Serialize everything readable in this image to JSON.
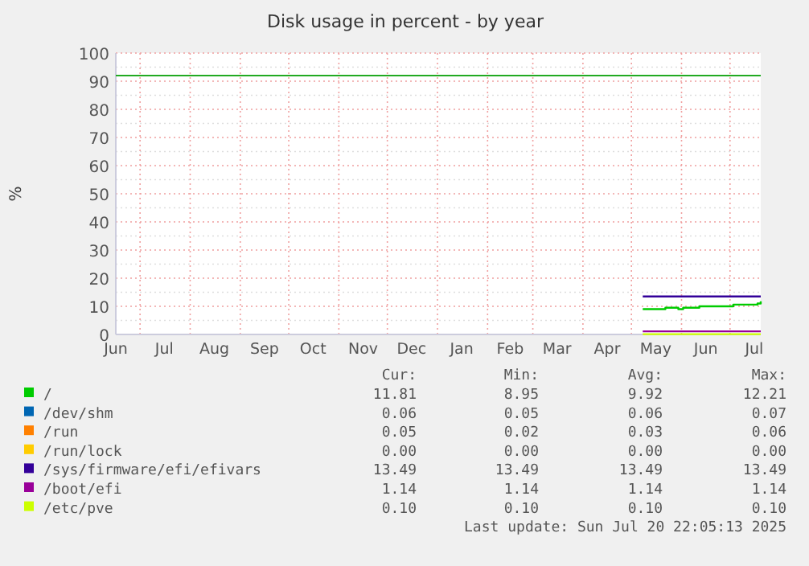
{
  "chart_data": {
    "type": "step",
    "title": "Disk usage in percent - by year",
    "ylabel": "%",
    "xlim": [
      "2024-06-16",
      "2025-07-20"
    ],
    "xticks": [
      {
        "value": "2024-06-16",
        "label": "Jun"
      },
      {
        "value": "2024-07-01",
        "label": null
      },
      {
        "value": "2024-07-16",
        "label": "Jul"
      },
      {
        "value": "2024-08-01",
        "label": null
      },
      {
        "value": "2024-08-16",
        "label": "Aug"
      },
      {
        "value": "2024-09-01",
        "label": null
      },
      {
        "value": "2024-09-16",
        "label": "Sep"
      },
      {
        "value": "2024-10-01",
        "label": null
      },
      {
        "value": "2024-10-16",
        "label": "Oct"
      },
      {
        "value": "2024-11-01",
        "label": null
      },
      {
        "value": "2024-11-16",
        "label": "Nov"
      },
      {
        "value": "2024-12-01",
        "label": null
      },
      {
        "value": "2024-12-16",
        "label": "Dec"
      },
      {
        "value": "2025-01-01",
        "label": null
      },
      {
        "value": "2025-01-16",
        "label": "Jan"
      },
      {
        "value": "2025-02-01",
        "label": null
      },
      {
        "value": "2025-02-15",
        "label": "Feb"
      },
      {
        "value": "2025-03-01",
        "label": null
      },
      {
        "value": "2025-03-16",
        "label": "Mar"
      },
      {
        "value": "2025-04-01",
        "label": null
      },
      {
        "value": "2025-04-16",
        "label": "Apr"
      },
      {
        "value": "2025-05-01",
        "label": null
      },
      {
        "value": "2025-05-16",
        "label": "May"
      },
      {
        "value": "2025-06-01",
        "label": null
      },
      {
        "value": "2025-06-16",
        "label": "Jun"
      },
      {
        "value": "2025-07-01",
        "label": null
      },
      {
        "value": "2025-07-16",
        "label": "Jul"
      }
    ],
    "ylim": [
      0,
      100
    ],
    "yticks": [
      0,
      {
        "value": 5,
        "label": null
      },
      10,
      {
        "value": 15,
        "label": null
      },
      20,
      {
        "value": 25,
        "label": null
      },
      30,
      {
        "value": 35,
        "label": null
      },
      40,
      {
        "value": 45,
        "label": null
      },
      50,
      {
        "value": 55,
        "label": null
      },
      60,
      {
        "value": 65,
        "label": null
      },
      70,
      {
        "value": 75,
        "label": null
      },
      80,
      {
        "value": 85,
        "label": null
      },
      90,
      {
        "value": 95,
        "label": null
      },
      100
    ],
    "grid": true,
    "legend": "bottom",
    "marker": "none",
    "line_style": "solid",
    "ref_lines": [
      {
        "axis": "y",
        "value": 92,
        "color": "#22aa22"
      }
    ],
    "series": [
      {
        "name": "/",
        "color": "#00cc00",
        "x": [
          "2025-05-08",
          "2025-05-22",
          "2025-05-30",
          "2025-06-02",
          "2025-06-12",
          "2025-07-03",
          "2025-07-18",
          "2025-07-20"
        ],
        "values": [
          9.0,
          9.5,
          9.0,
          9.5,
          10.0,
          10.6,
          11.0,
          11.8
        ]
      },
      {
        "name": "/dev/shm",
        "color": "#0066b3"
      },
      {
        "name": "/run",
        "color": "#ff8000"
      },
      {
        "name": "/run/lock",
        "color": "#ffcc00"
      },
      {
        "name": "/sys/firmware/efi/efivars",
        "color": "#330099",
        "x": [
          "2025-05-08",
          "2025-07-20"
        ],
        "values": [
          13.5,
          13.5
        ]
      },
      {
        "name": "/boot/efi",
        "color": "#990099",
        "x": [
          "2025-05-08",
          "2025-07-20"
        ],
        "values": [
          1.1,
          1.1
        ]
      },
      {
        "name": "/etc/pve",
        "color": "#ccff00",
        "x": [
          "2025-05-08",
          "2025-07-20"
        ],
        "values": [
          0.1,
          0.1
        ]
      }
    ],
    "annotations": [
      "Cur:",
      "Min:",
      "Avg:",
      "Max:",
      "11.81",
      "8.95",
      "9.92",
      "12.21",
      "0.06",
      "0.05",
      "0.06",
      "0.07",
      "0.05",
      "0.02",
      "0.03",
      "0.06",
      "0.00",
      "0.00",
      "0.00",
      "0.00",
      "13.49",
      "13.49",
      "13.49",
      "13.49",
      "1.14",
      "1.14",
      "1.14",
      "1.14",
      "0.10",
      "0.10",
      "0.10",
      "0.10",
      "Last update: Sun Jul 20 22:05:13 2025"
    ]
  }
}
